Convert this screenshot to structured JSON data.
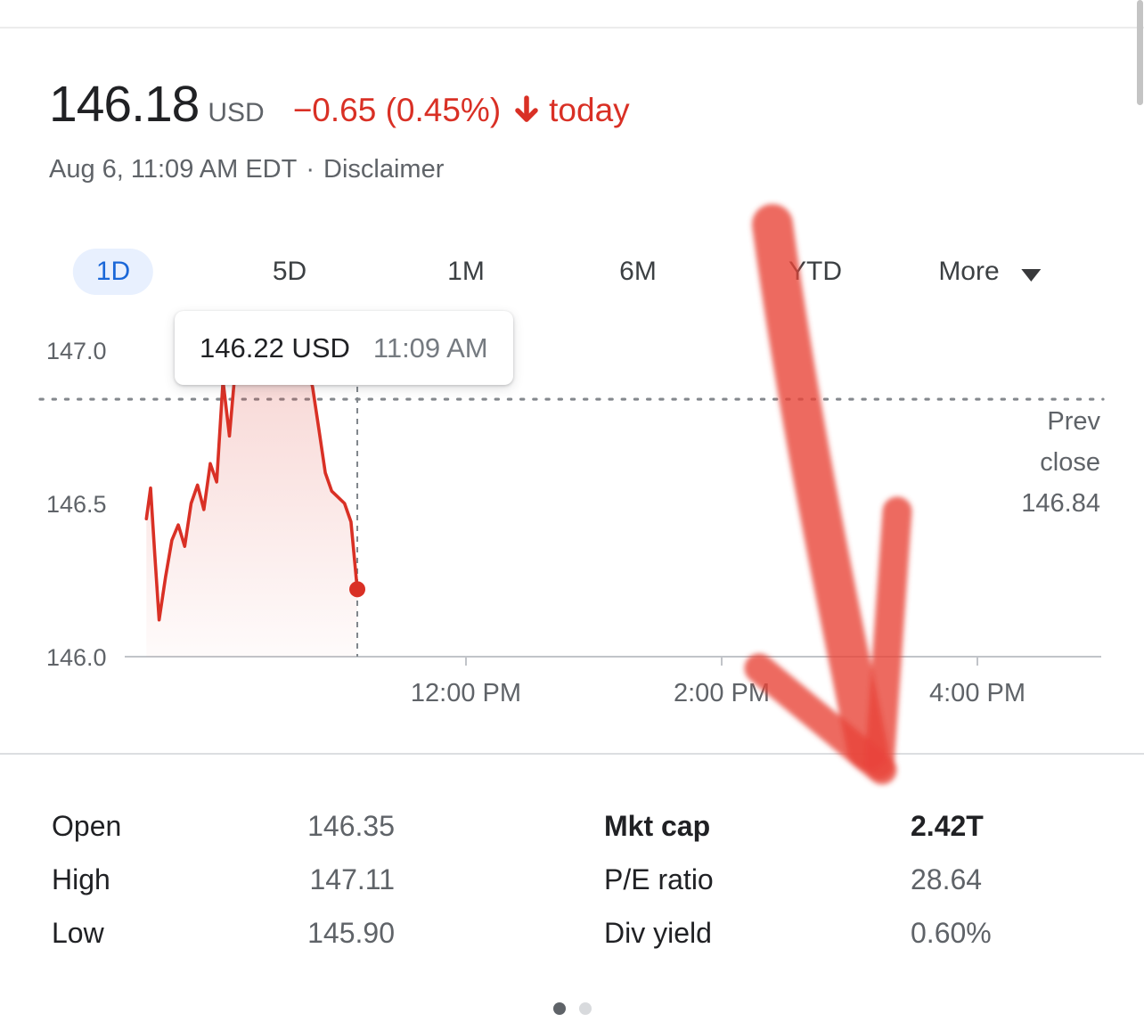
{
  "colors": {
    "accent_red": "#d93025",
    "annotation_arrow_red": "#e8443a",
    "active_tab_blue": "#1a67d8",
    "active_tab_bg": "#e8f0fe",
    "text_dark": "#202124",
    "text_gray": "#5f6368"
  },
  "header": {
    "price": "146.18",
    "currency": "USD",
    "change": "−0.65 (0.45%)",
    "change_icon": "arrow-down-icon",
    "change_period": "today",
    "date_line": "Aug 6, 11:09 AM EDT",
    "dot_separator": "·",
    "disclaimer_link": "Disclaimer"
  },
  "range_tabs": [
    {
      "label": "1D",
      "active": true
    },
    {
      "label": "5D",
      "active": false
    },
    {
      "label": "1M",
      "active": false
    },
    {
      "label": "6M",
      "active": false
    },
    {
      "label": "YTD",
      "active": false
    },
    {
      "label": "More",
      "active": false,
      "icon": "caret-down-icon"
    }
  ],
  "tooltip": {
    "price": "146.22 USD",
    "time": "11:09 AM"
  },
  "prev_close_label": {
    "line1": "Prev",
    "line2": "close",
    "value": "146.84"
  },
  "chart_data": {
    "type": "line",
    "x_axis": {
      "unit": "minutes since 9:30 AM market open",
      "range_minutes": [
        0,
        390
      ],
      "ticks": [
        {
          "label": "12:00 PM",
          "minutes": 150
        },
        {
          "label": "2:00 PM",
          "minutes": 270
        },
        {
          "label": "4:00 PM",
          "minutes": 390
        }
      ]
    },
    "y_axis": {
      "range": [
        145.95,
        147.15
      ],
      "ticks": [
        {
          "label": "147.0",
          "value": 147.0
        },
        {
          "label": "146.5",
          "value": 146.5
        },
        {
          "label": "146.0",
          "value": 146.0
        }
      ]
    },
    "prev_close": 146.84,
    "current_point": {
      "minutes": 99,
      "value": 146.22,
      "time": "11:09 AM"
    },
    "series": [
      {
        "name": "price",
        "color": "#d93025",
        "points": [
          [
            0,
            146.45
          ],
          [
            2,
            146.55
          ],
          [
            4,
            146.33
          ],
          [
            6,
            146.12
          ],
          [
            9,
            146.26
          ],
          [
            12,
            146.38
          ],
          [
            15,
            146.43
          ],
          [
            18,
            146.36
          ],
          [
            21,
            146.5
          ],
          [
            24,
            146.56
          ],
          [
            27,
            146.48
          ],
          [
            30,
            146.63
          ],
          [
            33,
            146.57
          ],
          [
            36,
            146.9
          ],
          [
            39,
            146.72
          ],
          [
            42,
            146.96
          ],
          [
            45,
            147.03
          ],
          [
            48,
            146.92
          ],
          [
            51,
            147.05
          ],
          [
            54,
            147.0
          ],
          [
            57,
            147.08
          ],
          [
            60,
            147.11
          ],
          [
            63,
            147.03
          ],
          [
            66,
            147.07
          ],
          [
            69,
            146.99
          ],
          [
            72,
            147.03
          ],
          [
            75,
            146.96
          ],
          [
            78,
            146.88
          ],
          [
            81,
            146.74
          ],
          [
            84,
            146.6
          ],
          [
            87,
            146.54
          ],
          [
            90,
            146.52
          ],
          [
            93,
            146.5
          ],
          [
            96,
            146.44
          ],
          [
            99,
            146.22
          ]
        ]
      }
    ]
  },
  "stats": {
    "left": [
      {
        "label": "Open",
        "value": "146.35"
      },
      {
        "label": "High",
        "value": "147.11"
      },
      {
        "label": "Low",
        "value": "145.90"
      }
    ],
    "right": [
      {
        "label": "Mkt cap",
        "value": "2.42T",
        "bold": true
      },
      {
        "label": "P/E ratio",
        "value": "28.64",
        "bold": false
      },
      {
        "label": "Div yield",
        "value": "0.60%",
        "bold": false
      }
    ]
  },
  "carousel": {
    "dot_count": 2,
    "active_index": 0
  }
}
